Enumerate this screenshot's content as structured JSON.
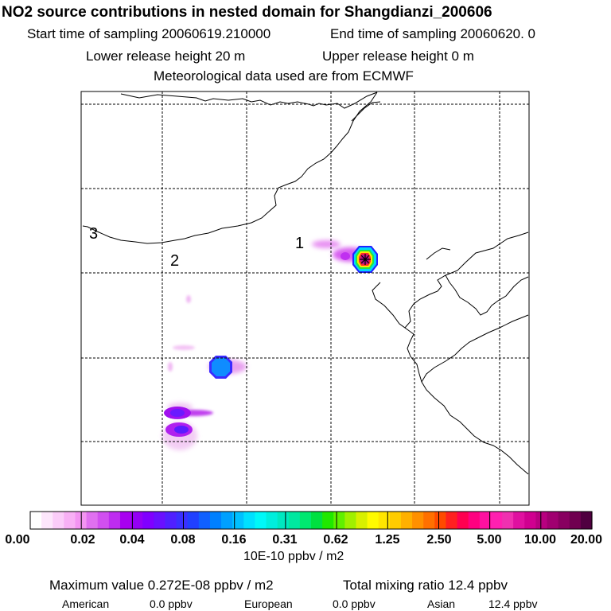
{
  "header": {
    "title": "NO2 source contributions in nested domain for Shangdianzi_200606",
    "start_time": "Start time of sampling 20060619.210000",
    "end_time": "End time of sampling 20060620.     0",
    "lower_release": "Lower release height   20 m",
    "upper_release": "Upper release height    0 m",
    "met_source": "Meteorological data used are from ECMWF"
  },
  "map": {
    "labels": [
      "1",
      "2",
      "3"
    ],
    "border_color": "#000000",
    "grid_color": "#000000"
  },
  "colorbar": {
    "unit": "10E-10 ppbv / m2",
    "ticks": [
      "0.00",
      "0.02",
      "0.04",
      "0.08",
      "0.16",
      "0.31",
      "0.62",
      "1.25",
      "2.50",
      "5.00",
      "10.00",
      "20.00"
    ],
    "colors": [
      "#ffffff",
      "#fde6fc",
      "#fbccf9",
      "#f8b0f5",
      "#f394f2",
      "#e070f0",
      "#d14ff0",
      "#be2cf0",
      "#a800f0",
      "#9400f5",
      "#8000ff",
      "#6a10ff",
      "#5020ff",
      "#3a30ff",
      "#2040ff",
      "#1060ff",
      "#0080ff",
      "#00a0ff",
      "#00c0ff",
      "#00e0ff",
      "#00f8f8",
      "#00eedd",
      "#00e8c0",
      "#00e8a0",
      "#00e870",
      "#00e040",
      "#20e800",
      "#60f000",
      "#a0f000",
      "#d8f000",
      "#fffa00",
      "#ffe600",
      "#ffcc00",
      "#ffb000",
      "#ff9000",
      "#ff7000",
      "#ff4a00",
      "#ff2020",
      "#ff0050",
      "#ff0080",
      "#ff10a0",
      "#ff20b0",
      "#f030b0",
      "#e010a0",
      "#d00090",
      "#b80080",
      "#a00070",
      "#880060",
      "#700050",
      "#500040"
    ]
  },
  "footer": {
    "max_value": "Maximum value  0.272E-08 ppbv / m2",
    "total_ratio": "Total mixing ratio      12.4 ppbv",
    "regions": [
      {
        "name": "American",
        "value": "0.0 ppbv"
      },
      {
        "name": "European",
        "value": "0.0 ppbv"
      },
      {
        "name": "Asian",
        "value": "12.4 ppbv"
      }
    ]
  }
}
